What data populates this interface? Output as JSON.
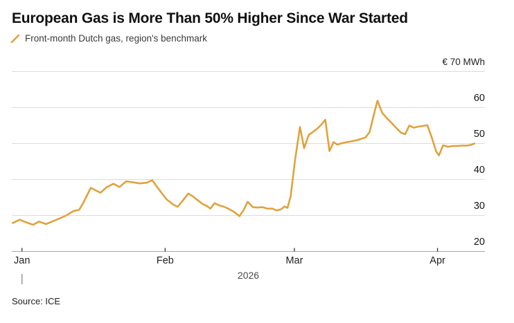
{
  "header": {
    "title": "European Gas is More Than 50% Higher Since War Started",
    "legend": {
      "label": "Front-month Dutch gas, region's benchmark",
      "swatch_color": "#E0A23C"
    }
  },
  "footer": {
    "year_label": "2026",
    "source": "Source: ICE"
  },
  "colors": {
    "line": "#E0A23C",
    "grid": "#dcdcdc",
    "axis": "#a6a6a6",
    "tick": "#333333",
    "year_tick": "#8a8a8a",
    "background": "#ffffff"
  },
  "chart_data": {
    "type": "line",
    "title": "European Gas is More Than 50% Higher Since War Started",
    "subtitle": "Front-month Dutch gas, region's benchmark",
    "ylabel": "€ 70 MWh",
    "xlabel": "2026",
    "source": "Source: ICE",
    "grid": "horizontal",
    "axis_label_position": "right",
    "x_unit": "days (0 = late Dec 2025, estimated from month ticks)",
    "xlim": [
      0,
      102
    ],
    "ylim": [
      20,
      71.5
    ],
    "x_ticks": [
      {
        "day": 2,
        "label": "Jan"
      },
      {
        "day": 33,
        "label": "Feb"
      },
      {
        "day": 61,
        "label": "Mar"
      },
      {
        "day": 92,
        "label": "Apr"
      }
    ],
    "y_ticks": [
      {
        "value": 70,
        "label": "€ 70 MWh",
        "unit_row": true
      },
      {
        "value": 60,
        "label": "60"
      },
      {
        "value": 50,
        "label": "50"
      },
      {
        "value": 40,
        "label": "40"
      },
      {
        "value": 30,
        "label": "30"
      },
      {
        "value": 20,
        "label": "20"
      }
    ],
    "series": [
      {
        "name": "Front-month Dutch gas, region's benchmark",
        "color": "#E0A23C",
        "points": [
          [
            0,
            27.9
          ],
          [
            1.5,
            28.8
          ],
          [
            2.9,
            28.1
          ],
          [
            4.4,
            27.4
          ],
          [
            5.7,
            28.3
          ],
          [
            7.2,
            27.6
          ],
          [
            8.7,
            28.4
          ],
          [
            10.2,
            29.2
          ],
          [
            11.6,
            30.0
          ],
          [
            13.1,
            31.2
          ],
          [
            14.4,
            31.6
          ],
          [
            15.3,
            33.6
          ],
          [
            16.9,
            37.7
          ],
          [
            17.8,
            37.1
          ],
          [
            19.0,
            36.3
          ],
          [
            20.3,
            37.8
          ],
          [
            21.8,
            38.8
          ],
          [
            23.1,
            37.9
          ],
          [
            24.6,
            39.5
          ],
          [
            26.1,
            39.2
          ],
          [
            27.5,
            38.9
          ],
          [
            29.0,
            39.1
          ],
          [
            30.2,
            39.8
          ],
          [
            31.8,
            37.0
          ],
          [
            33.3,
            34.5
          ],
          [
            34.8,
            33.0
          ],
          [
            35.7,
            32.4
          ],
          [
            36.8,
            34.1
          ],
          [
            38.0,
            36.1
          ],
          [
            39.0,
            35.3
          ],
          [
            40.1,
            34.2
          ],
          [
            41.1,
            33.2
          ],
          [
            42.0,
            32.7
          ],
          [
            42.8,
            31.9
          ],
          [
            43.7,
            33.4
          ],
          [
            44.7,
            32.8
          ],
          [
            45.8,
            32.4
          ],
          [
            46.8,
            31.8
          ],
          [
            47.9,
            31.0
          ],
          [
            49.1,
            29.8
          ],
          [
            50.0,
            31.5
          ],
          [
            50.9,
            33.8
          ],
          [
            52.0,
            32.3
          ],
          [
            53.0,
            32.2
          ],
          [
            54.1,
            32.3
          ],
          [
            55.1,
            31.9
          ],
          [
            56.2,
            31.9
          ],
          [
            57.1,
            31.4
          ],
          [
            58.1,
            31.7
          ],
          [
            58.9,
            32.5
          ],
          [
            59.5,
            32.1
          ],
          [
            60.2,
            35.3
          ],
          [
            61.1,
            45.0
          ],
          [
            62.2,
            54.6
          ],
          [
            63.1,
            48.7
          ],
          [
            64.1,
            52.4
          ],
          [
            65.0,
            53.2
          ],
          [
            66.1,
            54.3
          ],
          [
            67.0,
            55.5
          ],
          [
            67.7,
            56.6
          ],
          [
            68.6,
            47.9
          ],
          [
            69.5,
            50.4
          ],
          [
            70.3,
            49.7
          ],
          [
            71.3,
            50.1
          ],
          [
            72.4,
            50.4
          ],
          [
            73.4,
            50.6
          ],
          [
            74.5,
            50.9
          ],
          [
            75.5,
            51.3
          ],
          [
            76.4,
            51.7
          ],
          [
            77.3,
            53.2
          ],
          [
            78.2,
            58.0
          ],
          [
            79.0,
            61.9
          ],
          [
            80.0,
            58.6
          ],
          [
            80.9,
            57.2
          ],
          [
            82.0,
            55.8
          ],
          [
            83.0,
            54.4
          ],
          [
            84.1,
            53.0
          ],
          [
            85.0,
            52.6
          ],
          [
            85.9,
            55.0
          ],
          [
            86.8,
            54.4
          ],
          [
            87.8,
            54.7
          ],
          [
            88.9,
            54.9
          ],
          [
            89.8,
            55.1
          ],
          [
            90.8,
            51.5
          ],
          [
            91.7,
            47.8
          ],
          [
            92.3,
            46.7
          ],
          [
            93.2,
            49.5
          ],
          [
            94.3,
            49.1
          ],
          [
            95.2,
            49.3
          ],
          [
            96.2,
            49.3
          ],
          [
            97.3,
            49.4
          ],
          [
            98.2,
            49.4
          ],
          [
            99.2,
            49.6
          ],
          [
            100,
            50.0
          ]
        ]
      }
    ]
  }
}
